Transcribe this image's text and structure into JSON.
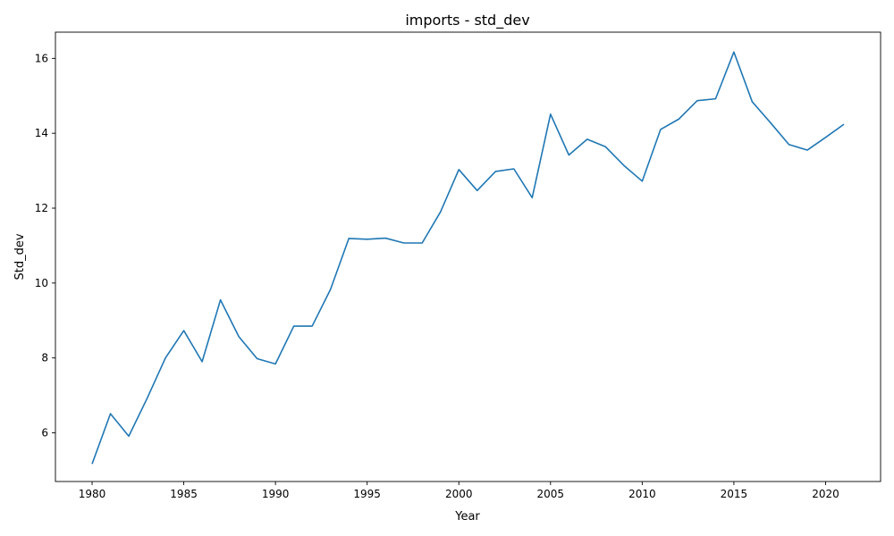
{
  "chart_data": {
    "type": "line",
    "title": "imports - std_dev",
    "xlabel": "Year",
    "ylabel": "Std_dev",
    "xlim": [
      1978,
      2023
    ],
    "ylim": [
      4.7,
      16.7
    ],
    "x_ticks": [
      1980,
      1985,
      1990,
      1995,
      2000,
      2005,
      2010,
      2015,
      2020
    ],
    "y_ticks": [
      6,
      8,
      10,
      12,
      14,
      16
    ],
    "grid": false,
    "series": [
      {
        "color": "#1f77b4",
        "x": [
          1980,
          1981,
          1982,
          1983,
          1984,
          1985,
          1986,
          1987,
          1988,
          1989,
          1990,
          1991,
          1992,
          1993,
          1994,
          1995,
          1996,
          1997,
          1998,
          1999,
          2000,
          2001,
          2002,
          2003,
          2004,
          2005,
          2006,
          2007,
          2008,
          2009,
          2010,
          2011,
          2012,
          2013,
          2014,
          2015,
          2016,
          2017,
          2018,
          2019,
          2020,
          2021
        ],
        "values": [
          5.17,
          6.51,
          5.91,
          6.92,
          8.0,
          8.73,
          7.9,
          9.55,
          8.57,
          7.98,
          7.84,
          8.85,
          8.85,
          9.83,
          11.19,
          11.17,
          11.2,
          11.07,
          11.07,
          11.9,
          13.03,
          12.47,
          12.98,
          13.05,
          12.28,
          14.51,
          13.42,
          13.84,
          13.64,
          13.14,
          12.72,
          14.1,
          14.38,
          14.87,
          14.92,
          16.17,
          14.84,
          14.28,
          13.7,
          13.55,
          13.89,
          14.24
        ]
      }
    ]
  }
}
